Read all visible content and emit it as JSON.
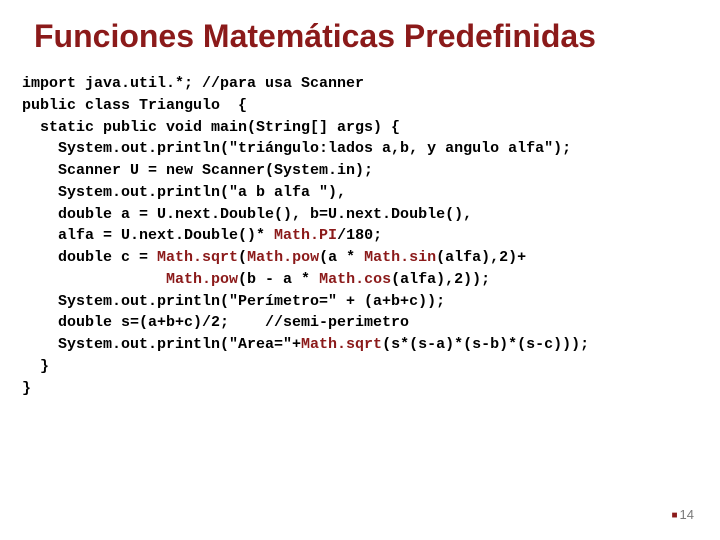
{
  "title": "Funciones Matemáticas Predefinidas",
  "title_color": "#8b1a1a",
  "title_fontsize": 32,
  "code_font": "Courier New",
  "code_fontsize": 15,
  "code_lineheight": 1.45,
  "emph_color": "#8b1a1a",
  "code": {
    "l01": "import java.util.*; //para usa Scanner",
    "l02": "public class Triangulo  {",
    "l03": "  static public void main(String[] args) {",
    "l04": "    System.out.println(\"triángulo:lados a,b, y angulo alfa\");",
    "l05": "    Scanner U = new Scanner(System.in);",
    "l06": "    System.out.println(\"a b alfa \"),",
    "l07a": "    double a = U.next.Double(), b=U.next.Double(),",
    "l08a": "    alfa = U.next.Double()* ",
    "l08b": "Math.PI",
    "l08c": "/180;",
    "l09a": "    double c = ",
    "l09b": "Math.sqrt",
    "l09c": "(",
    "l09d": "Math.pow",
    "l09e": "(a * ",
    "l09f": "Math.sin",
    "l09g": "(alfa),2)+",
    "l10a": "                ",
    "l10b": "Math.pow",
    "l10c": "(b - a * ",
    "l10d": "Math.cos",
    "l10e": "(alfa),2));",
    "l11": "    System.out.println(\"Perímetro=\" + (a+b+c));",
    "l12": "    double s=(a+b+c)/2;    //semi-perimetro",
    "l13a": "    System.out.println(\"Area=\"+",
    "l13b": "Math.sqrt",
    "l13c": "(s*(s-a)*(s-b)*(s-c)));",
    "l14": "  }",
    "l15": "}"
  },
  "page_number": "14",
  "page_number_color": "#7a7a7a",
  "bullet_color": "#8b1a1a",
  "background_color": "#ffffff"
}
